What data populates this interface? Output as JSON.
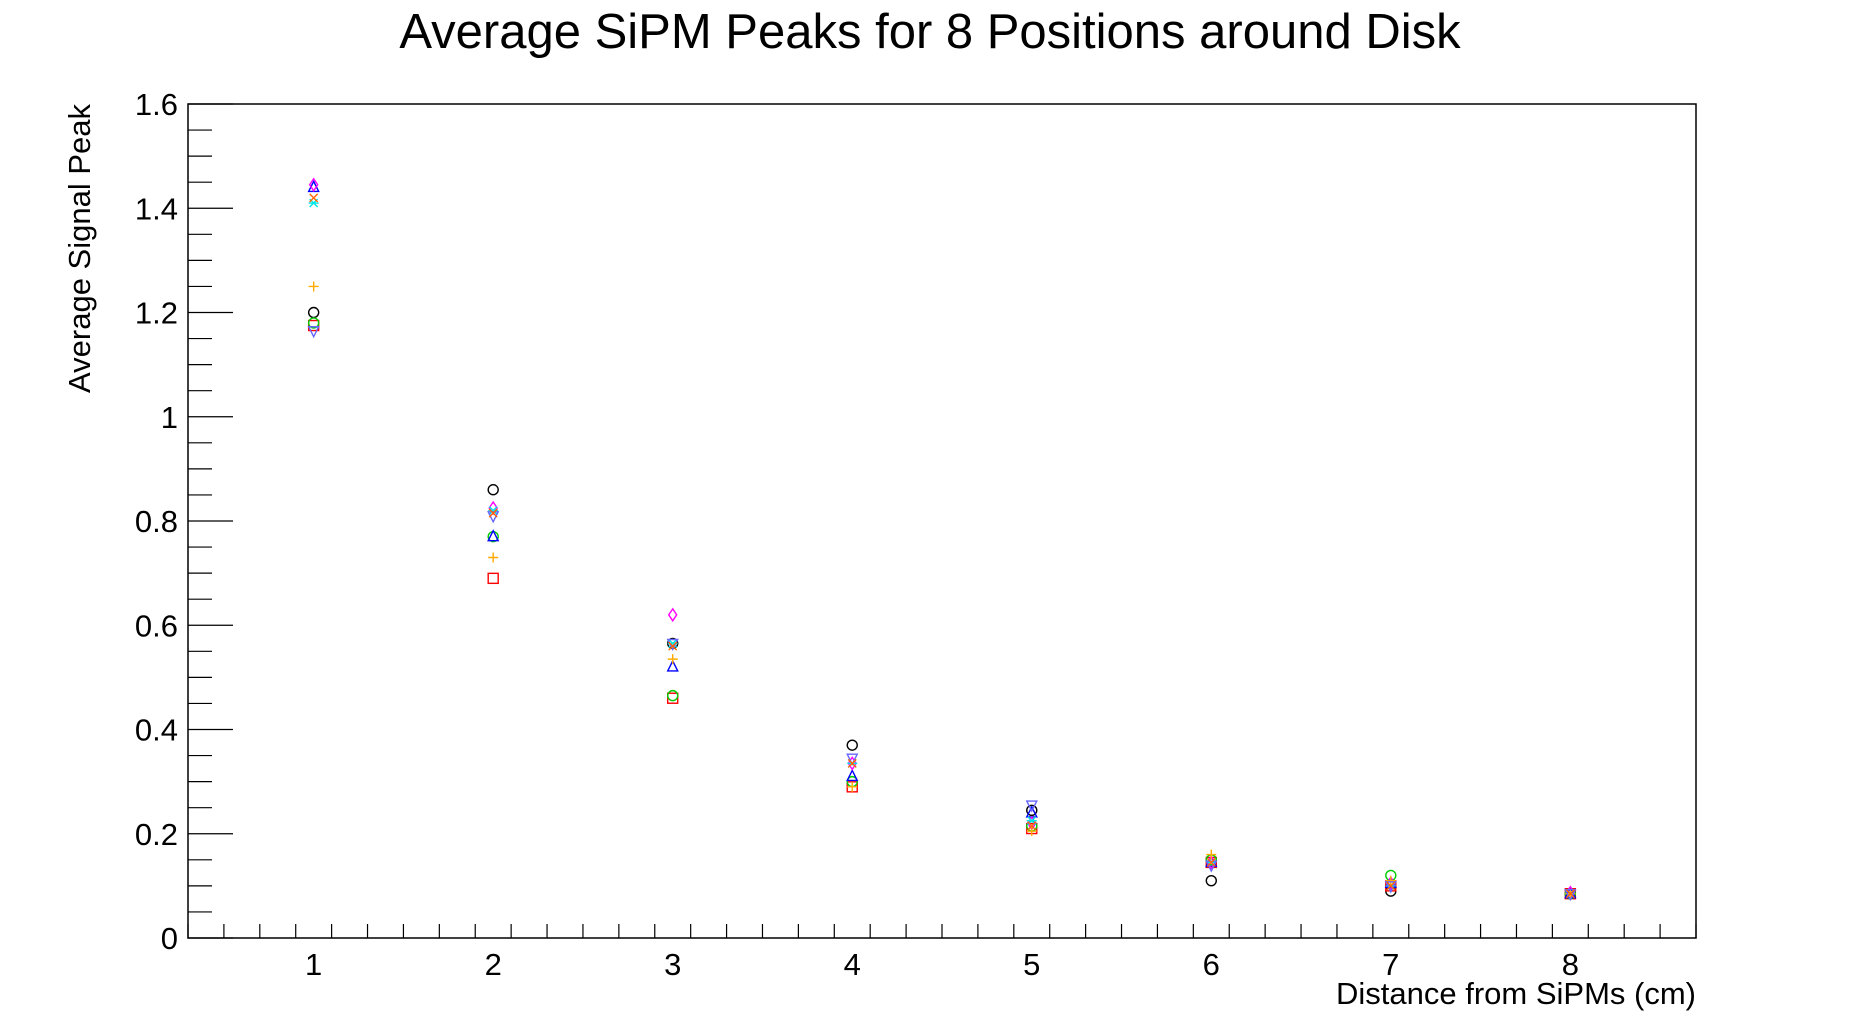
{
  "chart_data": {
    "type": "scatter",
    "title": "Average SiPM Peaks for 8 Positions around Disk",
    "xlabel": "Distance from SiPMs (cm)",
    "ylabel": "Average Signal Peak",
    "xlim": [
      0.3,
      8.7
    ],
    "ylim": [
      0,
      1.6
    ],
    "x_ticks": [
      "1",
      "2",
      "3",
      "4",
      "5",
      "6",
      "7",
      "8"
    ],
    "y_ticks": [
      "0",
      "0.2",
      "0.4",
      "0.6",
      "0.8",
      "1",
      "1.2",
      "1.4",
      "1.6"
    ],
    "grid": false,
    "x": [
      1,
      2,
      3,
      4,
      5,
      6,
      7,
      8
    ],
    "series": [
      {
        "marker": "circle",
        "color": "#000000",
        "values": [
          1.2,
          0.86,
          0.565,
          0.37,
          0.245,
          0.11,
          0.09,
          0.085
        ]
      },
      {
        "marker": "square",
        "color": "#ff0000",
        "values": [
          1.175,
          0.69,
          0.46,
          0.29,
          0.21,
          0.145,
          0.1,
          0.085
        ]
      },
      {
        "marker": "circle",
        "color": "#00cc00",
        "values": [
          1.18,
          0.77,
          0.465,
          0.3,
          0.215,
          0.15,
          0.12,
          0.085
        ]
      },
      {
        "marker": "triangle-up",
        "color": "#0000ff",
        "values": [
          1.44,
          0.77,
          0.52,
          0.31,
          0.24,
          0.145,
          0.105,
          0.085
        ]
      },
      {
        "marker": "diamond",
        "color": "#ff00ff",
        "values": [
          1.445,
          0.825,
          0.62,
          0.335,
          0.22,
          0.145,
          0.105,
          0.087
        ]
      },
      {
        "marker": "star",
        "color": "#00e5e5",
        "values": [
          1.41,
          0.82,
          0.565,
          0.335,
          0.225,
          0.145,
          0.1,
          0.085
        ]
      },
      {
        "marker": "plus",
        "color": "#ffaa00",
        "values": [
          1.25,
          0.73,
          0.535,
          0.29,
          0.205,
          0.16,
          0.11,
          0.085
        ]
      },
      {
        "marker": "triangle-down",
        "color": "#6666ff",
        "values": [
          1.165,
          0.81,
          0.565,
          0.345,
          0.255,
          0.14,
          0.1,
          0.085
        ]
      },
      {
        "marker": "cross",
        "color": "#ff6600",
        "values": [
          1.42,
          0.815,
          0.56,
          0.335,
          0.215,
          0.145,
          0.1,
          0.085
        ]
      }
    ]
  }
}
